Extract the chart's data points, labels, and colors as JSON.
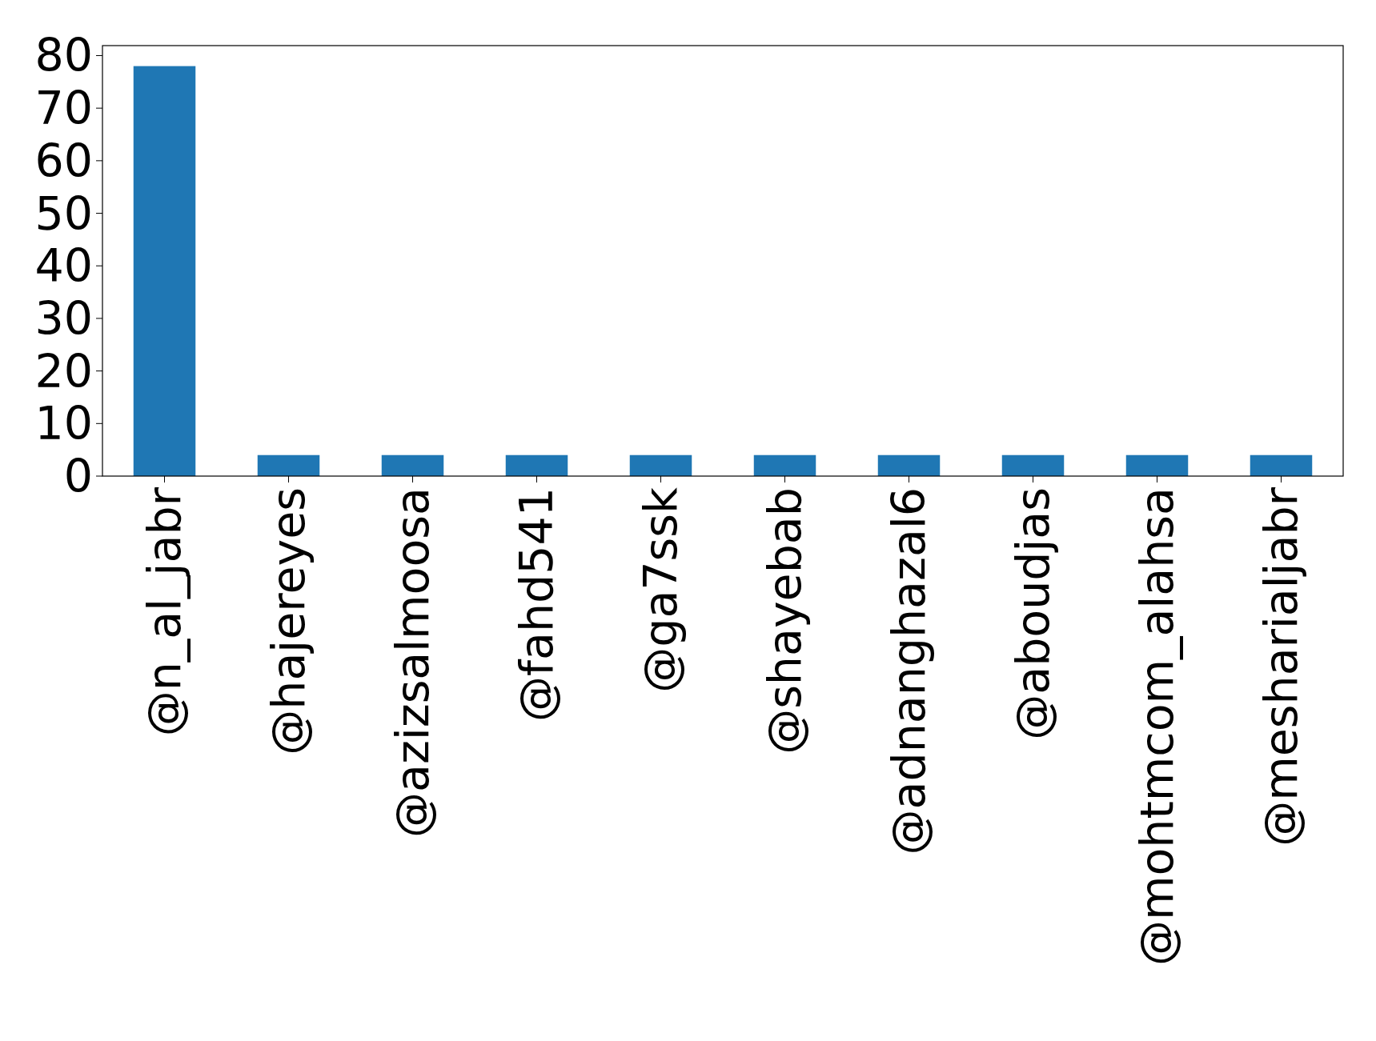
{
  "chart_data": {
    "type": "bar",
    "categories": [
      "@n_al_jabr",
      "@hajereyes",
      "@azizsalmoosa",
      "@fahd541",
      "@ga7ssk",
      "@shayebab",
      "@adnanghazal6",
      "@aboudjas",
      "@mohtmcom_alahsa",
      "@mesharialjabr"
    ],
    "values": [
      78,
      4,
      4,
      4,
      4,
      4,
      4,
      4,
      4,
      4
    ],
    "color": "#1f77b4",
    "ylim": [
      0,
      81.9
    ],
    "yticks": [
      0,
      10,
      20,
      30,
      40,
      50,
      60,
      70,
      80
    ],
    "grid": false
  }
}
